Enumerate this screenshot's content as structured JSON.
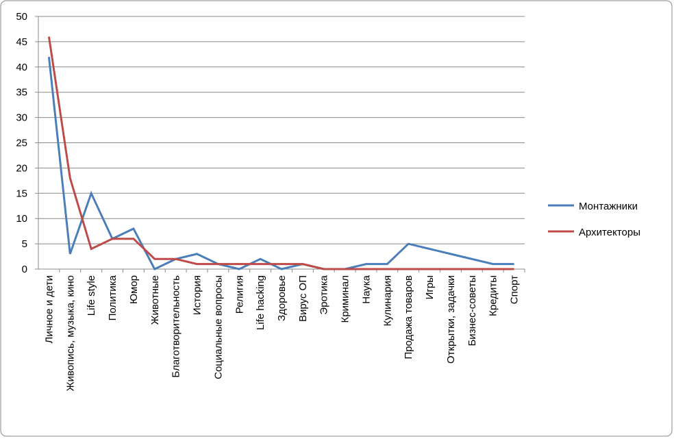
{
  "chart_data": {
    "type": "line",
    "categories": [
      "Личное и дети",
      "Живопись, музыка, кино",
      "Life style",
      "Политика",
      "Юмор",
      "Животные",
      "Благотворительность",
      "История",
      "Социальные вопросы",
      "Религия",
      "Life hacking",
      "Здоровье",
      "Вирус ОП",
      "Эротика",
      "Криминал",
      "Наука",
      "Кулинария",
      "Продажа товаров",
      "Игры",
      "Открытки, задачки",
      "Бизнес-советы",
      "Кредиты",
      "Спорт"
    ],
    "series": [
      {
        "name": "Монтажники",
        "color": "#4a7ebb",
        "values": [
          42,
          3,
          15,
          6,
          8,
          0,
          2,
          3,
          1,
          0,
          2,
          0,
          1,
          0,
          0,
          1,
          1,
          5,
          4,
          3,
          2,
          1,
          1
        ]
      },
      {
        "name": "Архитекторы",
        "color": "#be4b48",
        "values": [
          46,
          18,
          4,
          6,
          6,
          2,
          2,
          1,
          1,
          1,
          1,
          1,
          1,
          0,
          0,
          0,
          0,
          0,
          0,
          0,
          0,
          0,
          0
        ]
      }
    ],
    "ylim": [
      0,
      50
    ],
    "yticks": [
      0,
      5,
      10,
      15,
      20,
      25,
      30,
      35,
      40,
      45,
      50
    ],
    "grid": true,
    "legend": "right"
  }
}
